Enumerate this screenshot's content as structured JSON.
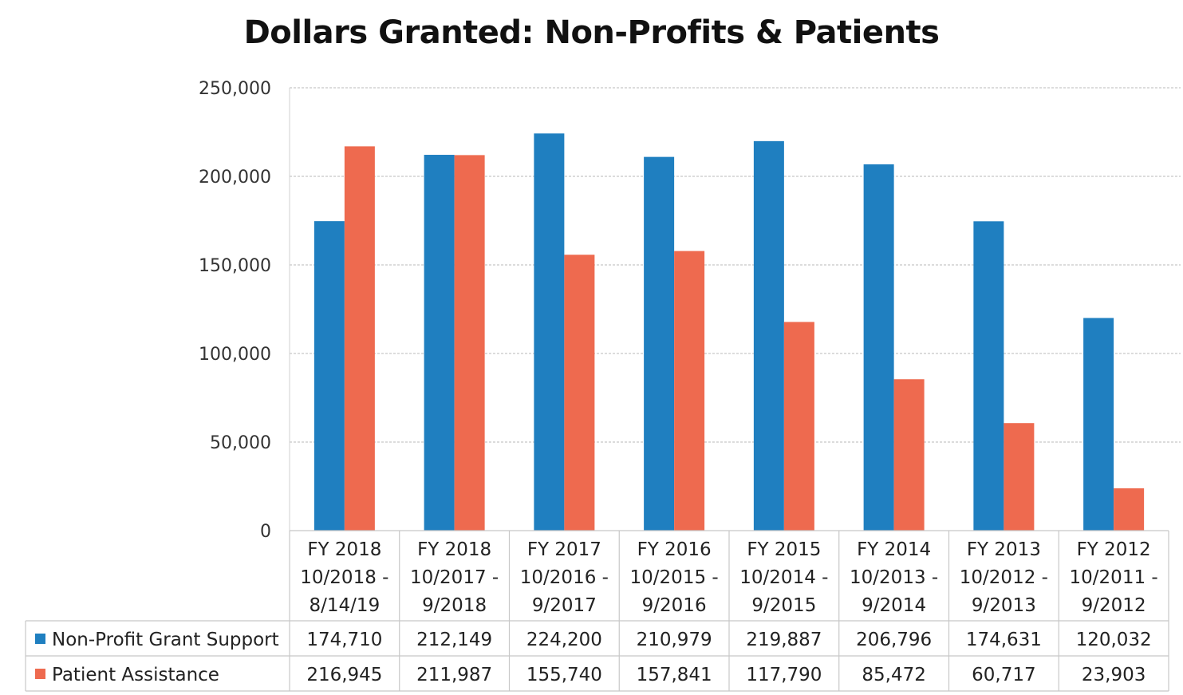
{
  "chart_data": {
    "type": "bar",
    "title": "Dollars Granted: Non-Profits & Patients",
    "categories": [
      [
        "FY 2018",
        "10/2018 -",
        "8/14/19"
      ],
      [
        "FY 2018",
        "10/2017 -",
        "9/2018"
      ],
      [
        "FY 2017",
        "10/2016 -",
        "9/2017"
      ],
      [
        "FY 2016",
        "10/2015 -",
        "9/2016"
      ],
      [
        "FY 2015",
        "10/2014 -",
        "9/2015"
      ],
      [
        "FY 2014",
        "10/2013 -",
        "9/2014"
      ],
      [
        "FY 2013",
        "10/2012 -",
        "9/2013"
      ],
      [
        "FY 2012",
        "10/2011 -",
        "9/2012"
      ]
    ],
    "series": [
      {
        "name": "Non-Profit Grant Support",
        "color": "#1f7fc0",
        "values": [
          174710,
          212149,
          224200,
          210979,
          219887,
          206796,
          174631,
          120032
        ],
        "labels": [
          "174,710",
          "212,149",
          "224,200",
          "210,979",
          "219,887",
          "206,796",
          "174,631",
          "120,032"
        ]
      },
      {
        "name": "Patient Assistance",
        "color": "#ee6a4f",
        "values": [
          216945,
          211987,
          155740,
          157841,
          117790,
          85472,
          60717,
          23903
        ],
        "labels": [
          "216,945",
          "211,987",
          "155,740",
          "157,841",
          "117,790",
          "85,472",
          "60,717",
          "23,903"
        ]
      }
    ],
    "ylim": [
      0,
      250000
    ],
    "yticks": [
      0,
      50000,
      100000,
      150000,
      200000,
      250000
    ],
    "ytick_labels": [
      "0",
      "50,000",
      "100,000",
      "150,000",
      "200,000",
      "250,000"
    ],
    "grid": true,
    "legend_placement": "data-table-below"
  }
}
